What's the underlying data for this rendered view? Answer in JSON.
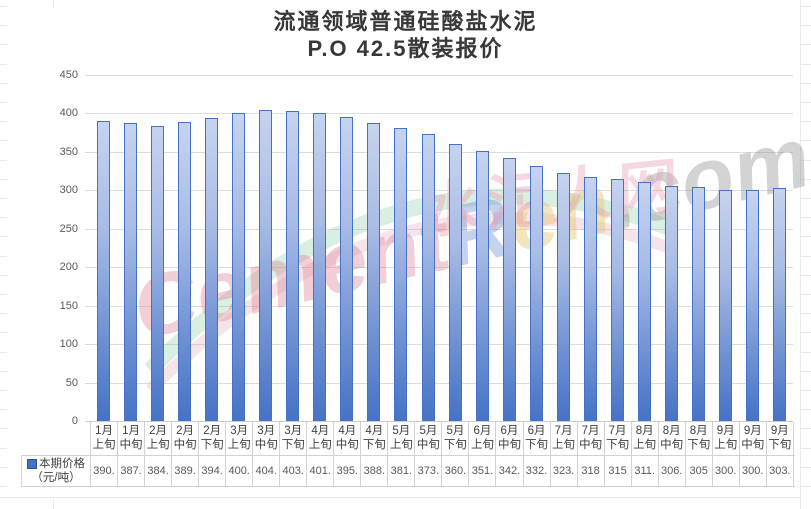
{
  "title": {
    "line1": "流通领域普通硅酸盐水泥",
    "line2": "P.O 42.5散装报价"
  },
  "legend": {
    "series_label_line1": "本期价格",
    "series_label_line2": "（元/吨）",
    "key_color": "#4472c4"
  },
  "y_axis": {
    "tick_labels": [
      "450",
      "400",
      "350",
      "300",
      "250",
      "200",
      "150",
      "100",
      "50",
      "0"
    ]
  },
  "watermark": {
    "part_cement": "Cement",
    "part_r": "R",
    "part_en": "en",
    "part_com": ".com",
    "chinese": "水泥人网"
  },
  "chart_data": {
    "type": "bar",
    "title": "流通领域普通硅酸盐水泥 P.O 42.5散装报价",
    "categories": [
      "1月上旬",
      "1月中旬",
      "2月上旬",
      "2月中旬",
      "2月下旬",
      "3月上旬",
      "3月中旬",
      "3月下旬",
      "4月上旬",
      "4月中旬",
      "4月下旬",
      "5月上旬",
      "5月中旬",
      "5月下旬",
      "6月上旬",
      "6月中旬",
      "6月下旬",
      "7月上旬",
      "7月中旬",
      "7月下旬",
      "8月上旬",
      "8月中旬",
      "8月下旬",
      "9月上旬",
      "9月中旬",
      "9月下旬"
    ],
    "series": [
      {
        "name": "本期价格（元/吨）",
        "values": [
          390,
          387,
          384,
          389,
          394,
          400,
          404,
          403,
          401,
          395,
          388,
          381,
          373,
          360,
          351,
          342,
          332,
          323,
          318,
          315,
          311,
          306,
          305,
          300,
          300,
          303
        ]
      }
    ],
    "display_values": [
      "390.",
      "387.",
      "384.",
      "389.",
      "394.",
      "400.",
      "404.",
      "403.",
      "401.",
      "395.",
      "388.",
      "381.",
      "373.",
      "360.",
      "351.",
      "342.",
      "332.",
      "323.",
      "318",
      "315",
      "311.",
      "306.",
      "305",
      "300.",
      "300.",
      "303."
    ],
    "xlabel": "",
    "ylabel": "",
    "ylim": [
      0,
      450
    ],
    "ytick_interval": 50,
    "grid": true,
    "legend_position": "data-table-left"
  },
  "colors": {
    "bar_border": "#4472c4",
    "bar_fill_top": "#c6d3f0",
    "bar_fill_bottom": "#4573c6",
    "gridline": "#dcdcdc",
    "table_border": "#d2d2d2",
    "tick_text": "#595959",
    "title_text": "#383838"
  }
}
